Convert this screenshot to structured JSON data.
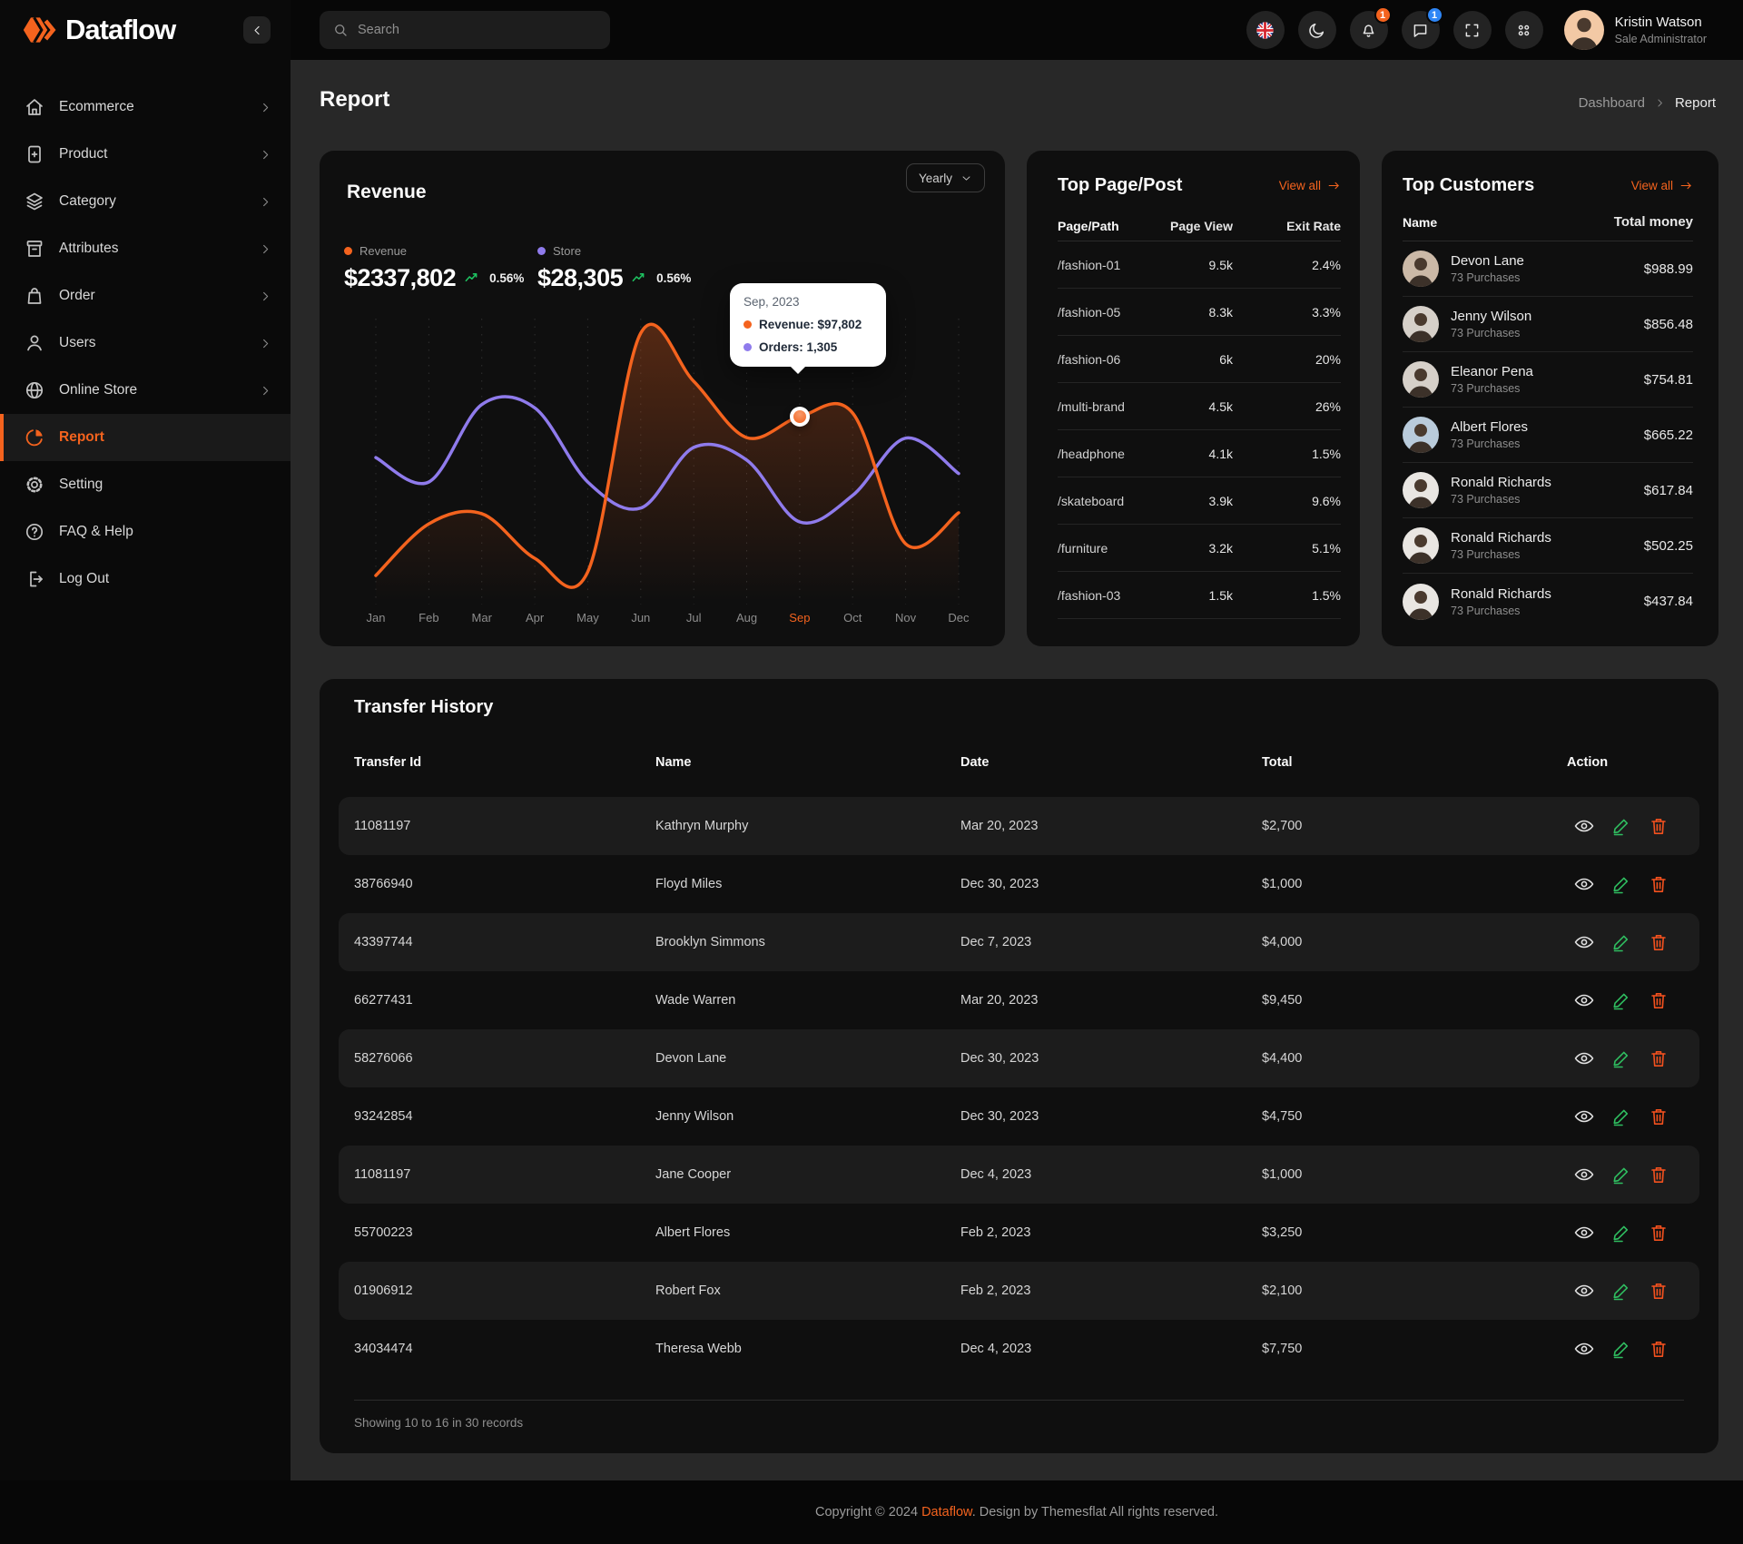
{
  "colors": {
    "accent": "#F4631E",
    "purple": "#8F7BEC",
    "green": "#1EC160",
    "edit_green": "#2FBE60",
    "trash_red": "#F4511E",
    "badge_blue": "#2E86F6",
    "card_bg": "#0f0f0f",
    "main_bg": "#282828"
  },
  "sidebar": {
    "logo": "Dataflow",
    "items": [
      {
        "label": "Ecommerce",
        "icon": "home",
        "expandable": true,
        "active": false
      },
      {
        "label": "Product",
        "icon": "document",
        "expandable": true,
        "active": false
      },
      {
        "label": "Category",
        "icon": "layers",
        "expandable": true,
        "active": false
      },
      {
        "label": "Attributes",
        "icon": "archive",
        "expandable": true,
        "active": false
      },
      {
        "label": "Order",
        "icon": "bag",
        "expandable": true,
        "active": false
      },
      {
        "label": "Users",
        "icon": "user",
        "expandable": true,
        "active": false
      },
      {
        "label": "Online Store",
        "icon": "globe",
        "expandable": true,
        "active": false
      },
      {
        "label": "Report",
        "icon": "pie",
        "expandable": false,
        "active": true
      },
      {
        "label": "Setting",
        "icon": "gear",
        "expandable": false,
        "active": false
      },
      {
        "label": "FAQ & Help",
        "icon": "help",
        "expandable": false,
        "active": false
      },
      {
        "label": "Log Out",
        "icon": "logout",
        "expandable": false,
        "active": false
      }
    ]
  },
  "topbar": {
    "search_placeholder": "Search",
    "icons": [
      {
        "icon": "uk-flag",
        "badge": null,
        "badge_color": null
      },
      {
        "icon": "moon",
        "badge": null,
        "badge_color": null
      },
      {
        "icon": "bell",
        "badge": "1",
        "badge_color": "#F4631E"
      },
      {
        "icon": "chat",
        "badge": "1",
        "badge_color": "#2E86F6"
      },
      {
        "icon": "fullscreen",
        "badge": null,
        "badge_color": null
      },
      {
        "icon": "grid-apps",
        "badge": null,
        "badge_color": null
      }
    ],
    "user": {
      "name": "Kristin Watson",
      "role": "Sale Administrator",
      "avatar_color": "#f3c9a5"
    }
  },
  "page": {
    "title": "Report",
    "breadcrumb": {
      "parent": "Dashboard",
      "current": "Report"
    }
  },
  "revenue": {
    "title": "Revenue",
    "period": "Yearly",
    "legend": [
      {
        "label": "Revenue",
        "value": "$2337,802",
        "change": "0.56%",
        "color": "#F4631E"
      },
      {
        "label": "Store",
        "value": "$28,305",
        "change": "0.56%",
        "color": "#8F7BEC"
      }
    ],
    "tooltip": {
      "title": "Sep, 2023",
      "rows": [
        {
          "text": "Revenue: $97,802",
          "color": "#F4631E"
        },
        {
          "text": "Orders: 1,305",
          "color": "#8F7BEC"
        }
      ]
    }
  },
  "chart_data": {
    "type": "line",
    "title": "Revenue",
    "x": [
      "Jan",
      "Feb",
      "Mar",
      "Apr",
      "May",
      "Jun",
      "Jul",
      "Aug",
      "Sep",
      "Oct",
      "Nov",
      "Dec"
    ],
    "highlighted_x": "Sep",
    "grid": "vertical-dotted",
    "legend_position": "top",
    "series": [
      {
        "name": "Revenue",
        "color": "#F4631E",
        "area_fill": true,
        "values": [
          25600,
          49100,
          53700,
          33400,
          27200,
          135800,
          113900,
          88300,
          97802,
          99500,
          40000,
          54100
        ]
      },
      {
        "name": "Orders",
        "color": "#8F7BEC",
        "area_fill": false,
        "values": [
          2070,
          1780,
          2700,
          2660,
          1780,
          1470,
          2190,
          2040,
          1305,
          1620,
          2300,
          1880
        ]
      }
    ],
    "tooltip_point": {
      "x": "Sep",
      "revenue": 97802,
      "orders": 1305
    }
  },
  "top_pages": {
    "title": "Top Page/Post",
    "view_all": "View all",
    "headers": [
      "Page/Path",
      "Page View",
      "Exit Rate"
    ],
    "rows": [
      {
        "path": "/fashion-01",
        "views": "9.5k",
        "exit": "2.4%"
      },
      {
        "path": "/fashion-05",
        "views": "8.3k",
        "exit": "3.3%"
      },
      {
        "path": "/fashion-06",
        "views": "6k",
        "exit": "20%"
      },
      {
        "path": "/multi-brand",
        "views": "4.5k",
        "exit": "26%"
      },
      {
        "path": "/headphone",
        "views": "4.1k",
        "exit": "1.5%"
      },
      {
        "path": "/skateboard",
        "views": "3.9k",
        "exit": "9.6%"
      },
      {
        "path": "/furniture",
        "views": "3.2k",
        "exit": "5.1%"
      },
      {
        "path": "/fashion-03",
        "views": "1.5k",
        "exit": "1.5%"
      }
    ]
  },
  "top_customers": {
    "title": "Top Customers",
    "view_all": "View all",
    "headers": [
      "Name",
      "Total money"
    ],
    "rows": [
      {
        "name": "Devon Lane",
        "purchases": "73 Purchases",
        "amount": "$988.99",
        "avatar_color": "#cbb9a7"
      },
      {
        "name": "Jenny Wilson",
        "purchases": "73 Purchases",
        "amount": "$856.48",
        "avatar_color": "#d6d0c9"
      },
      {
        "name": "Eleanor Pena",
        "purchases": "73 Purchases",
        "amount": "$754.81",
        "avatar_color": "#d6d0c9"
      },
      {
        "name": "Albert Flores",
        "purchases": "73 Purchases",
        "amount": "$665.22",
        "avatar_color": "#b9cbdb"
      },
      {
        "name": "Ronald Richards",
        "purchases": "73 Purchases",
        "amount": "$617.84",
        "avatar_color": "#e9e6e2"
      },
      {
        "name": "Ronald Richards",
        "purchases": "73 Purchases",
        "amount": "$502.25",
        "avatar_color": "#e9e6e2"
      },
      {
        "name": "Ronald Richards",
        "purchases": "73 Purchases",
        "amount": "$437.84",
        "avatar_color": "#e9e6e2"
      }
    ]
  },
  "transfer_history": {
    "title": "Transfer History",
    "headers": [
      "Transfer Id",
      "Name",
      "Date",
      "Total",
      "Action"
    ],
    "rows": [
      {
        "id": "11081197",
        "name": "Kathryn Murphy",
        "date": "Mar 20, 2023",
        "total": "$2,700"
      },
      {
        "id": "38766940",
        "name": "Floyd Miles",
        "date": "Dec 30, 2023",
        "total": "$1,000"
      },
      {
        "id": "43397744",
        "name": "Brooklyn Simmons",
        "date": "Dec 7, 2023",
        "total": "$4,000"
      },
      {
        "id": "66277431",
        "name": "Wade Warren",
        "date": "Mar 20, 2023",
        "total": "$9,450"
      },
      {
        "id": "58276066",
        "name": "Devon Lane",
        "date": "Dec 30, 2023",
        "total": "$4,400"
      },
      {
        "id": "93242854",
        "name": "Jenny Wilson",
        "date": "Dec 30, 2023",
        "total": "$4,750"
      },
      {
        "id": "11081197",
        "name": "Jane Cooper",
        "date": "Dec 4, 2023",
        "total": "$1,000"
      },
      {
        "id": "55700223",
        "name": "Albert Flores",
        "date": "Feb 2, 2023",
        "total": "$3,250"
      },
      {
        "id": "01906912",
        "name": "Robert Fox",
        "date": "Feb 2, 2023",
        "total": "$2,100"
      },
      {
        "id": "34034474",
        "name": "Theresa Webb",
        "date": "Dec 4, 2023",
        "total": "$7,750"
      }
    ],
    "pagination": "Showing 10 to 16 in 30 records"
  },
  "footer": {
    "prefix": "Copyright © 2024 ",
    "brand": "Dataflow",
    "suffix": ". Design by Themesflat All rights reserved."
  }
}
